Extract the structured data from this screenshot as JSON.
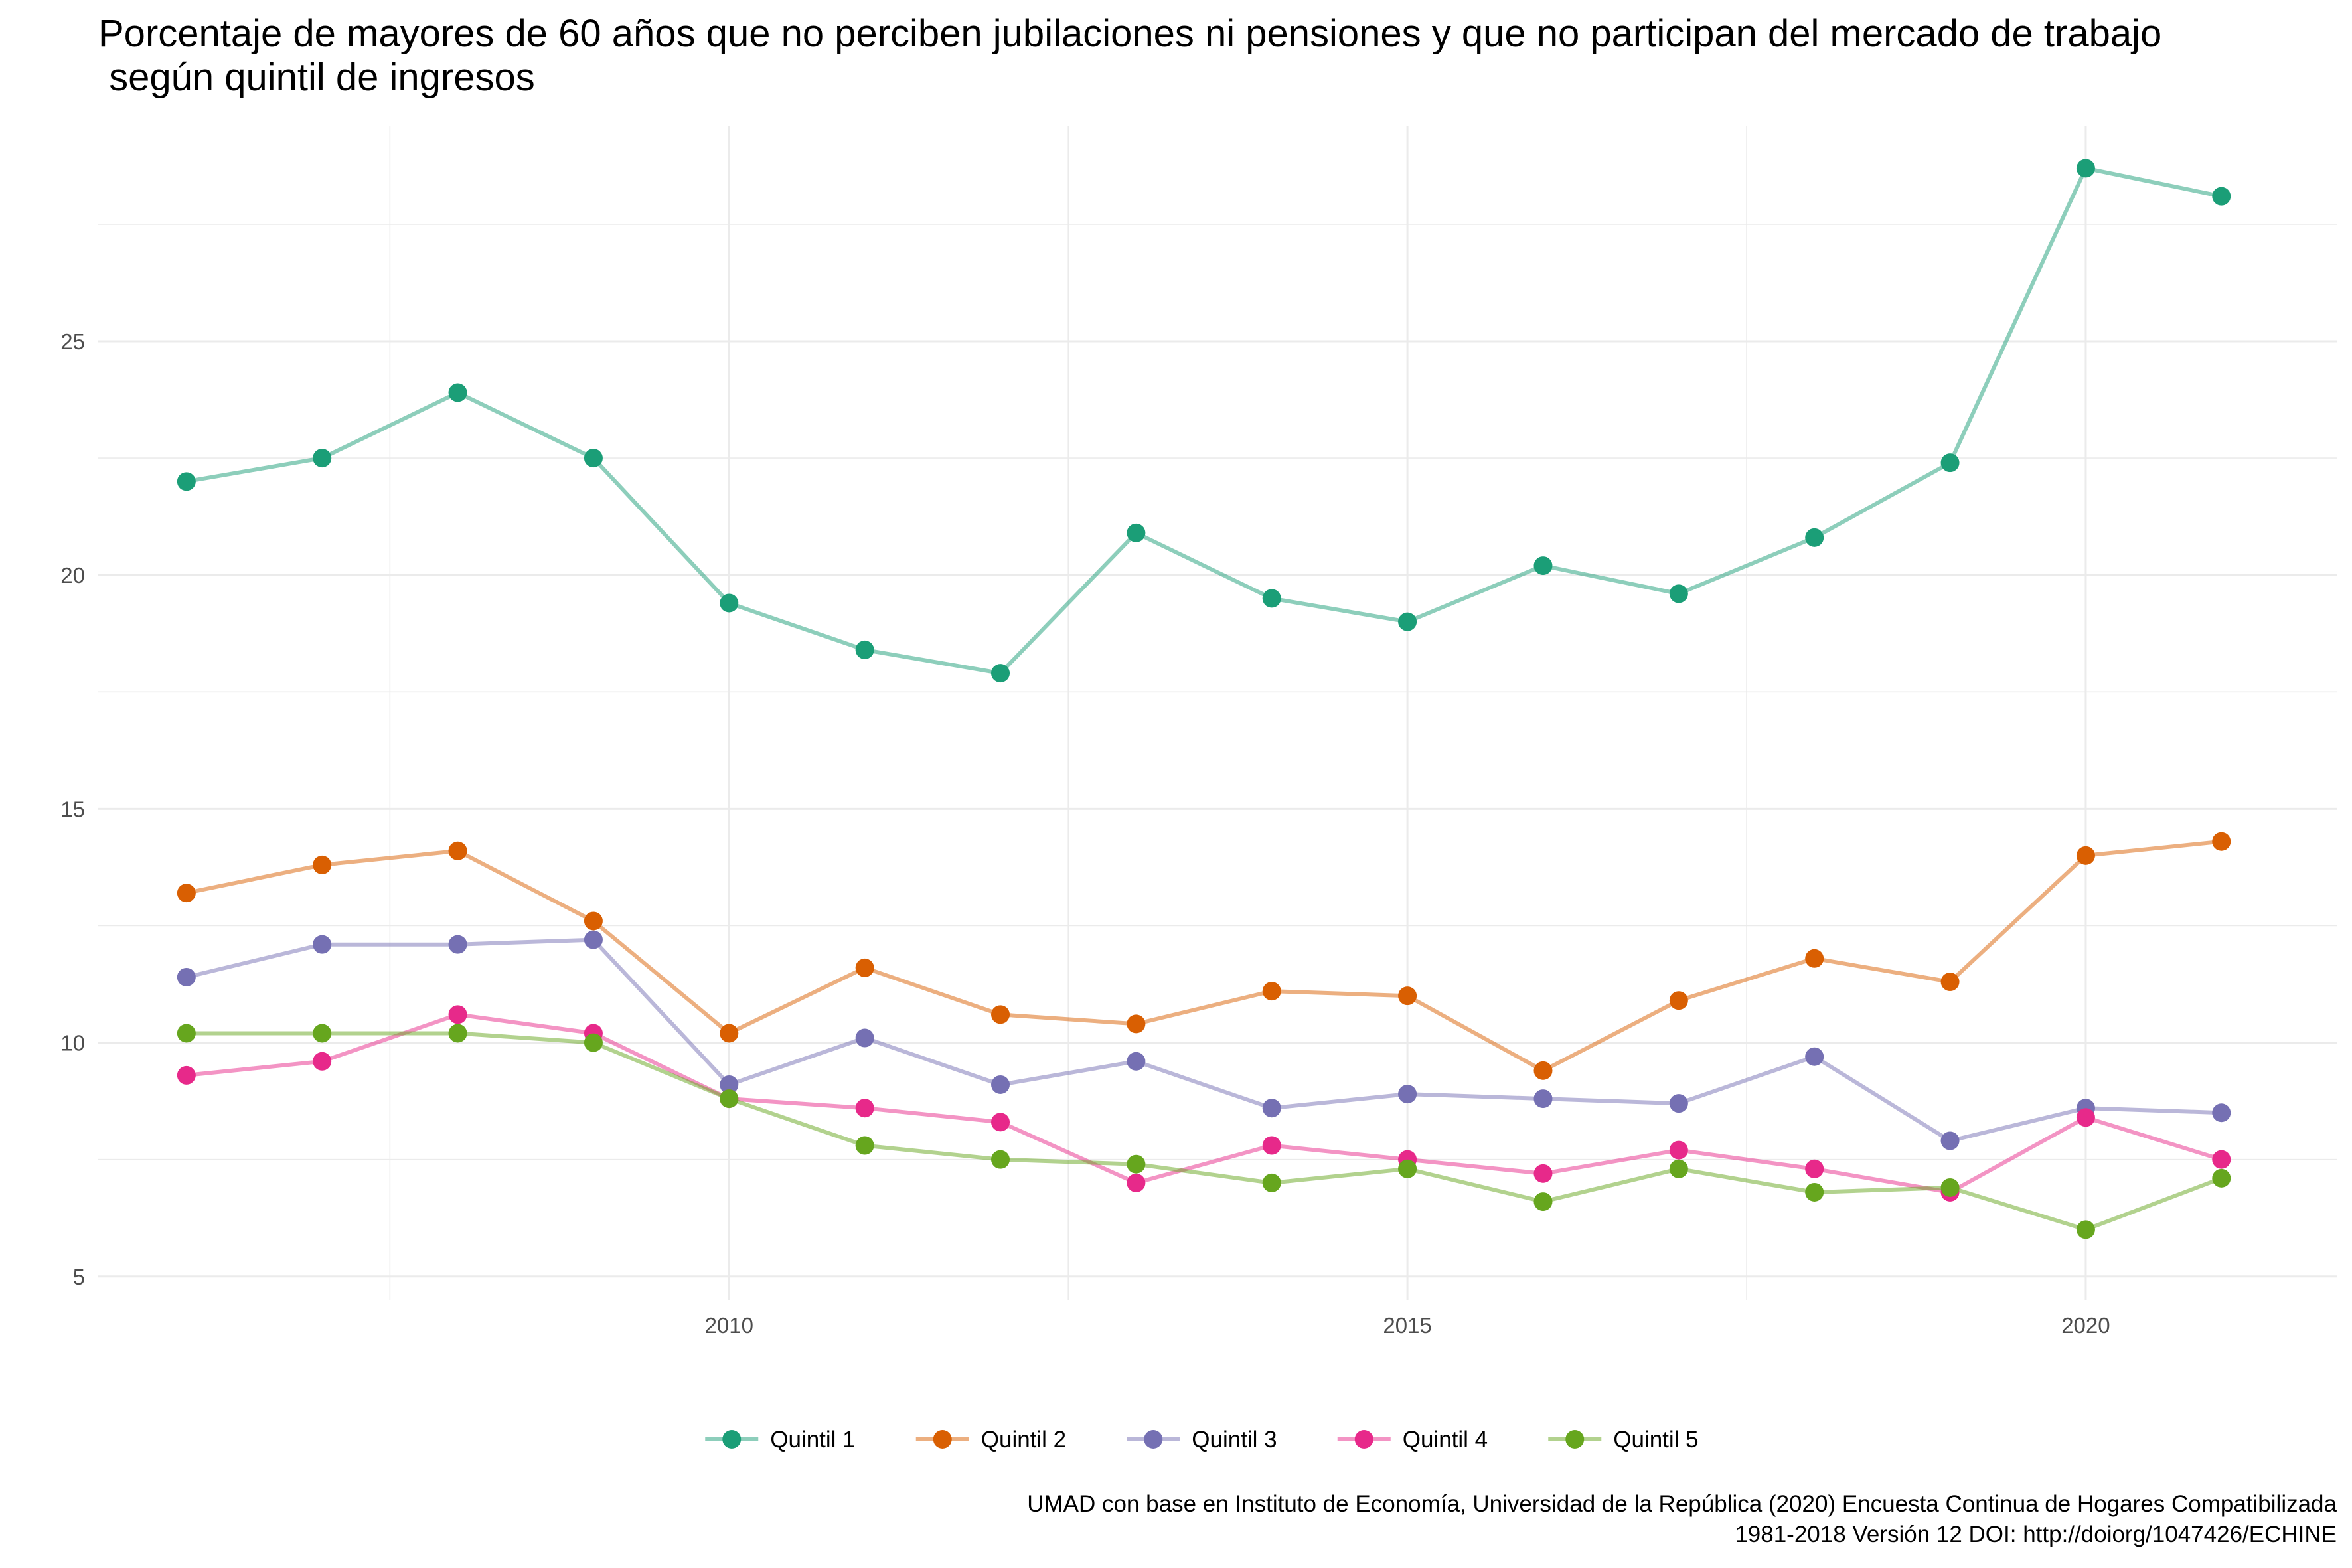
{
  "chart_data": {
    "type": "line",
    "title_lines": [
      "Porcentaje de mayores de 60 años que no perciben jubilaciones ni pensiones y que no participan del mercado de trabajo",
      " según quintil de ingresos"
    ],
    "xlabel": "",
    "ylabel": "",
    "x": [
      2006,
      2007,
      2008,
      2009,
      2010,
      2011,
      2012,
      2013,
      2014,
      2015,
      2016,
      2017,
      2018,
      2019,
      2020,
      2021
    ],
    "xlim": [
      2005.35,
      2021.85
    ],
    "ylim": [
      4.5,
      29.6
    ],
    "x_ticks": [
      2010,
      2015,
      2020
    ],
    "y_ticks": [
      5,
      10,
      15,
      20,
      25
    ],
    "grid": true,
    "legend_position": "bottom",
    "series": [
      {
        "name": "Quintil 1",
        "color": "#1B9E77",
        "values": [
          22.0,
          22.5,
          23.9,
          22.5,
          19.4,
          18.4,
          17.9,
          20.9,
          19.5,
          19.0,
          20.2,
          19.6,
          20.8,
          22.4,
          28.7,
          28.1
        ]
      },
      {
        "name": "Quintil 2",
        "color": "#D95F02",
        "values": [
          13.2,
          13.8,
          14.1,
          12.6,
          10.2,
          11.6,
          10.6,
          10.4,
          11.1,
          11.0,
          9.4,
          10.9,
          11.8,
          11.3,
          14.0,
          14.3
        ]
      },
      {
        "name": "Quintil 3",
        "color": "#7570B3",
        "values": [
          11.4,
          12.1,
          12.1,
          12.2,
          9.1,
          10.1,
          9.1,
          9.6,
          8.6,
          8.9,
          8.8,
          8.7,
          9.7,
          7.9,
          8.6,
          8.5
        ]
      },
      {
        "name": "Quintil 4",
        "color": "#E7298A",
        "values": [
          9.3,
          9.6,
          10.6,
          10.2,
          8.8,
          8.6,
          8.3,
          7.0,
          7.8,
          7.5,
          7.2,
          7.7,
          7.3,
          6.8,
          8.4,
          7.5
        ]
      },
      {
        "name": "Quintil 5",
        "color": "#66A61E",
        "values": [
          10.2,
          10.2,
          10.2,
          10.0,
          8.8,
          7.8,
          7.5,
          7.4,
          7.0,
          7.3,
          6.6,
          7.3,
          6.8,
          6.9,
          6.0,
          7.1
        ]
      }
    ],
    "caption_lines": [
      "UMAD con base en Instituto de Economía, Universidad de la República (2020) Encuesta Continua de Hogares Compatibilizada",
      "1981-2018 Versión 12 DOI: http://doiorg/1047426/ECHINE"
    ]
  }
}
